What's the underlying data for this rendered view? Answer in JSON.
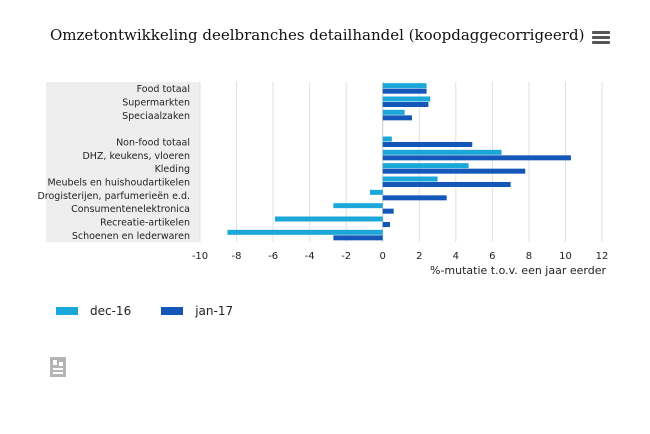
{
  "title": "Omzetontwikkeling deelbranches detailhandel (koopdaggecorrigeerd)",
  "menu_icon": "hamburger-menu-icon",
  "logo_icon": "cbs-logo-icon",
  "colors": {
    "dec16": "#1ba7d8",
    "jan17": "#1457b8",
    "band": "#eeeeee",
    "grid": "#e0e0e0"
  },
  "chart_data": {
    "type": "bar",
    "orientation": "horizontal",
    "title": "Omzetontwikkeling deelbranches detailhandel (koopdaggecorrigeerd)",
    "xlabel": "%-mutatie t.o.v. een jaar eerder",
    "xlim": [
      -10,
      12
    ],
    "xticks": [
      "-10",
      "-8",
      "-6",
      "-4",
      "-2",
      "0",
      "2",
      "4",
      "6",
      "8",
      "10",
      "12"
    ],
    "categories": [
      "Food totaal",
      "Supermarkten",
      "Speciaalzaken",
      "",
      "Non-food totaal",
      "DHZ, keukens, vloeren",
      "Kleding",
      "Meubels en huishoudartikelen",
      "Drogisterijen, parfumerieën e.d.",
      "Consumentenelektronica",
      "Recreatie-artikelen",
      "Schoenen en lederwaren"
    ],
    "series": [
      {
        "name": "dec-16",
        "values": [
          2.4,
          2.6,
          1.2,
          null,
          0.5,
          6.5,
          4.7,
          3.0,
          -0.7,
          -2.7,
          -5.9,
          -8.5
        ]
      },
      {
        "name": "jan-17",
        "values": [
          2.4,
          2.5,
          1.6,
          null,
          4.9,
          10.3,
          7.8,
          7.0,
          3.5,
          0.6,
          0.4,
          -2.7
        ]
      }
    ],
    "legend_position": "bottom-left",
    "grid": true
  }
}
